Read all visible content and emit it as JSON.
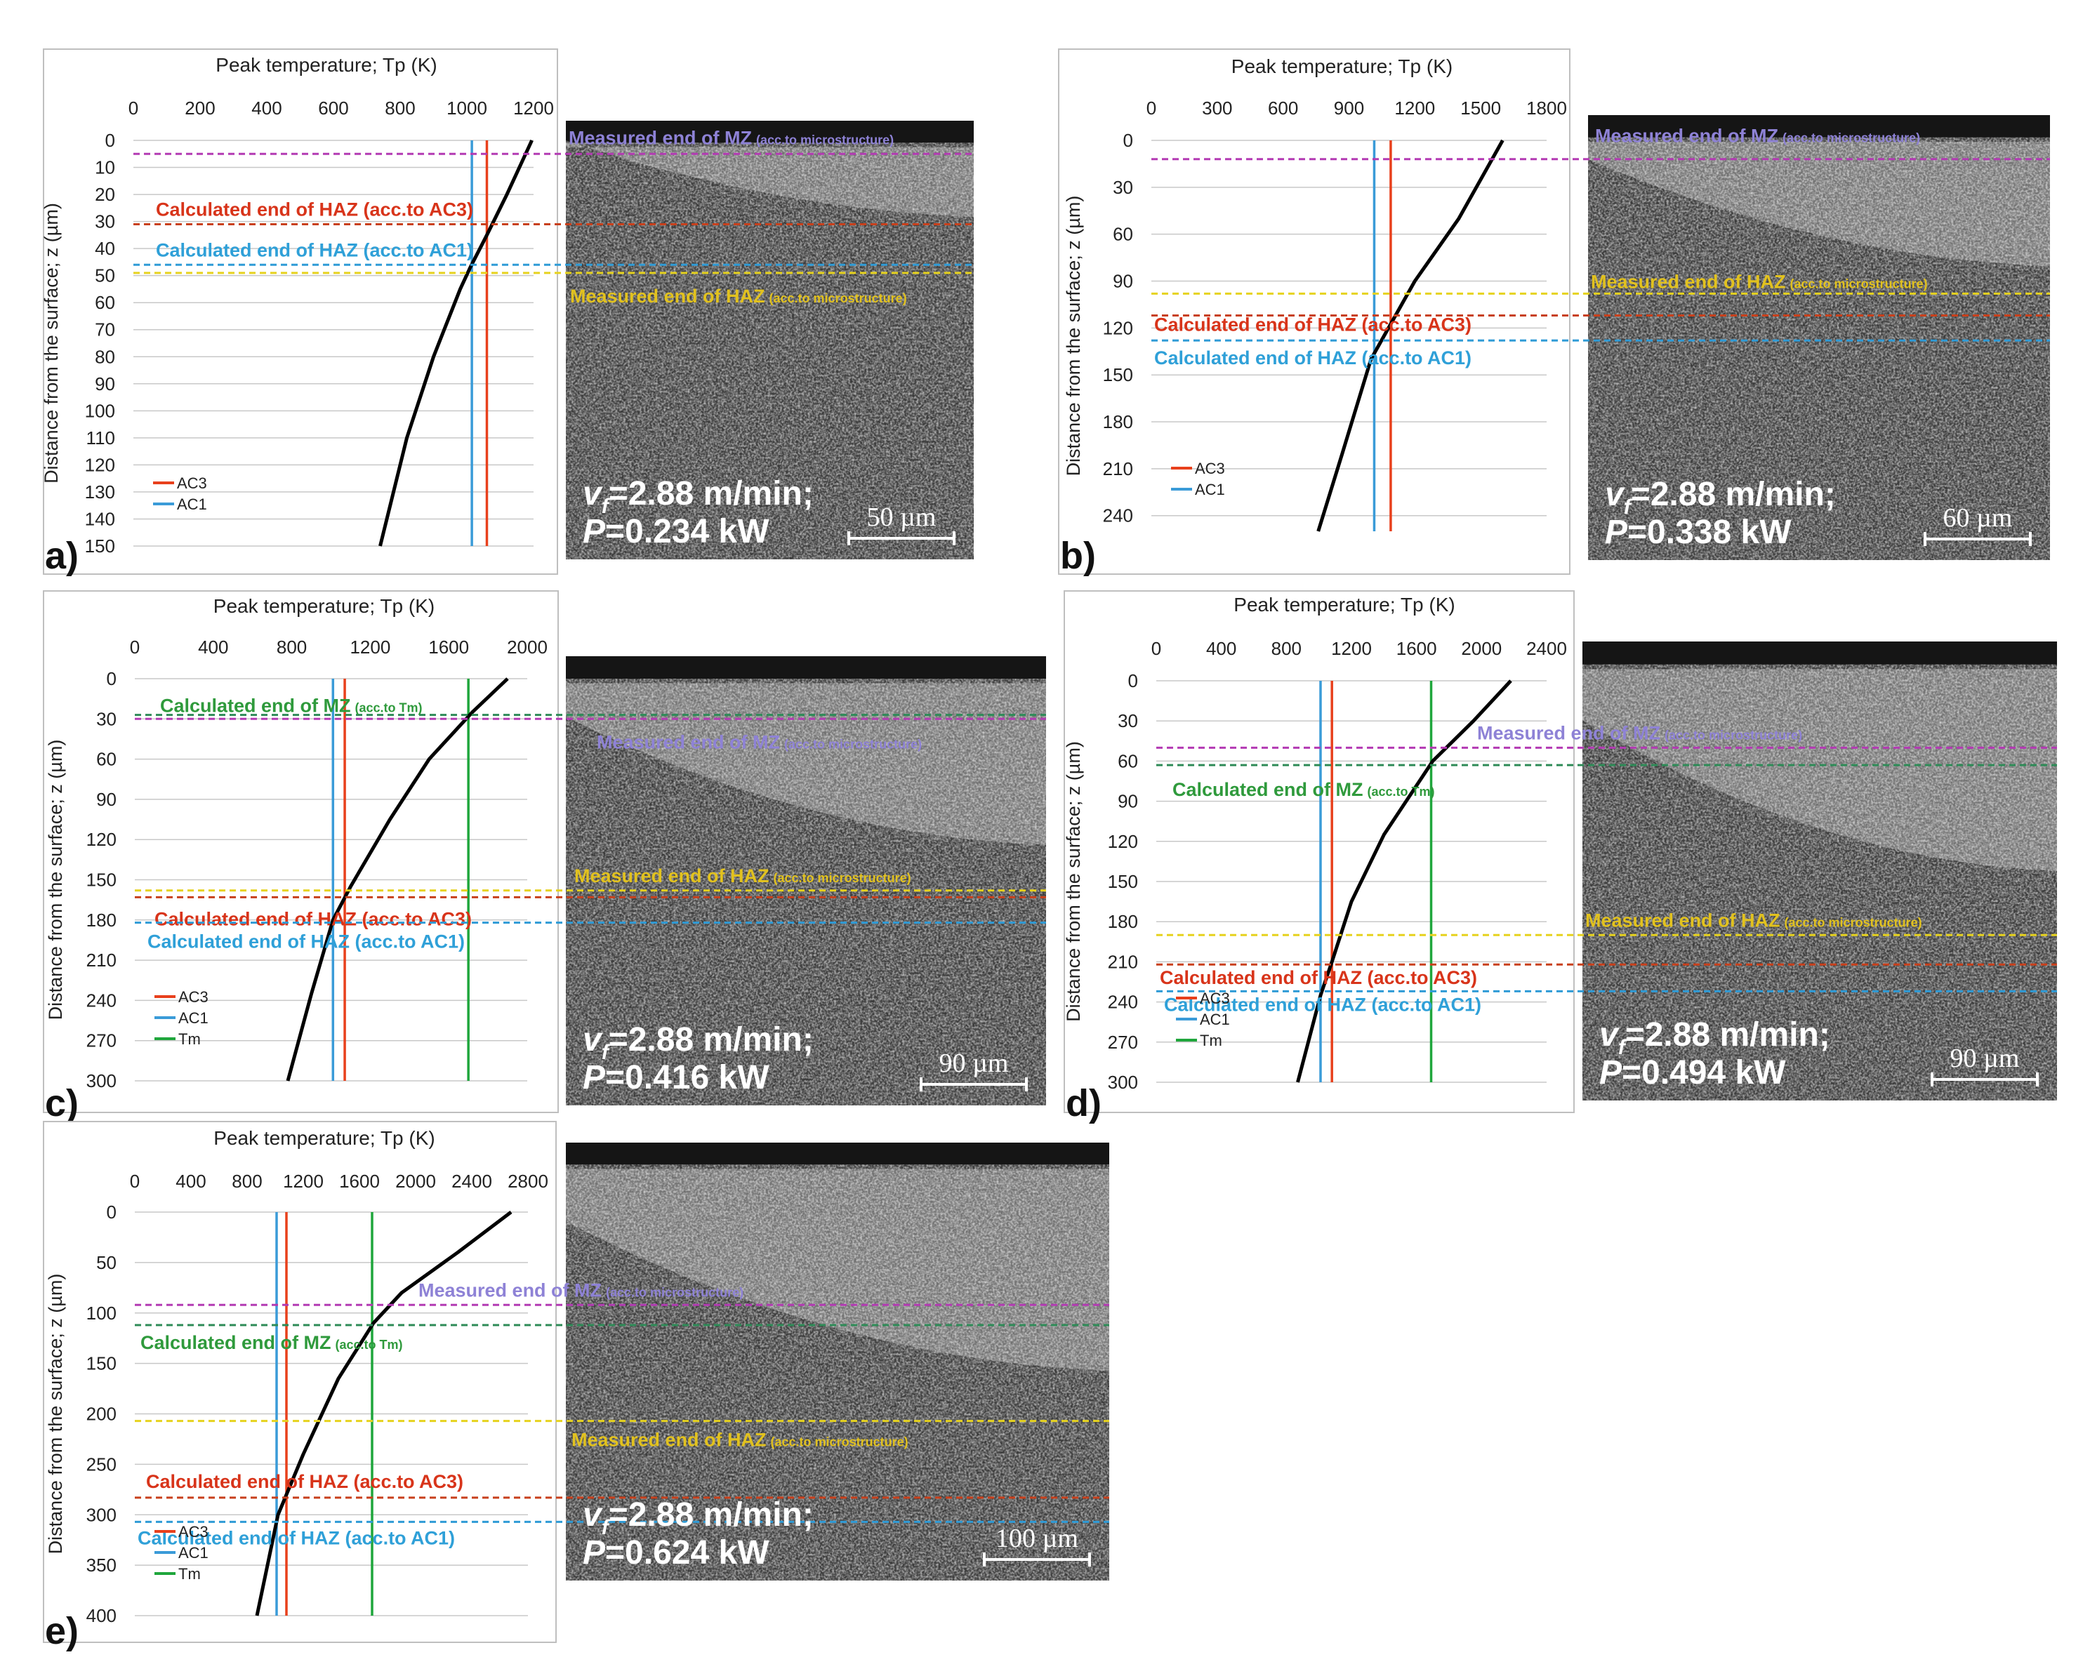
{
  "figure": {
    "background": "#ffffff"
  },
  "styles": {
    "colors": {
      "ac3": "#e8401c",
      "ac1": "#3a9bd8",
      "tm": "#1fa63c",
      "curve": "#000000",
      "grid": "#c8c8c8",
      "frame": "#bfbfbf",
      "line_measured_mz": "#b33ab3",
      "line_calc_mz": "#2e8b57",
      "line_haz_micro": "#e6d21e",
      "line_haz_ac3": "#c8401c",
      "line_haz_ac1": "#2f9bd6",
      "text_measured_mz": "#8e82d6",
      "text_calc_mz": "#2f9a3c",
      "text_haz_micro": "#e2c21e",
      "text_haz_ac3": "#d8341a",
      "text_haz_ac1": "#2fa0d8"
    }
  },
  "chart_data": [
    {
      "panel_label": "a)",
      "type": "line",
      "title": "Peak temperature; Tp (K)",
      "ylabel": "Distance from the surface; z (µm)",
      "xlim": [
        0,
        1200
      ],
      "xticks": [
        0,
        200,
        400,
        600,
        800,
        1000,
        1200
      ],
      "ylim": [
        0,
        150
      ],
      "yticks": [
        0,
        10,
        20,
        30,
        40,
        50,
        60,
        70,
        80,
        90,
        100,
        110,
        120,
        130,
        140,
        150
      ],
      "series": [
        {
          "name": "Tp",
          "x": [
            1195,
            1120,
            1060,
            1010,
            980,
            900,
            820,
            760,
            740
          ],
          "y": [
            0,
            20,
            35,
            47,
            55,
            80,
            110,
            140,
            150
          ]
        },
        {
          "name": "AC3",
          "x": [
            1060,
            1060
          ],
          "y": [
            0,
            150
          ]
        },
        {
          "name": "AC1",
          "x": [
            1015,
            1015
          ],
          "y": [
            0,
            150
          ]
        }
      ],
      "legend": [
        "AC3",
        "AC1"
      ],
      "legend_position": "bottom-left",
      "annotations": [
        {
          "kind": "measured_mz",
          "z": 5,
          "text": "Measured end of MZ",
          "sub": "(acc.to microstructure)"
        },
        {
          "kind": "haz_ac3",
          "z": 31,
          "text": "Calculated end of HAZ (acc.to AC3)",
          "sub": ""
        },
        {
          "kind": "haz_ac1",
          "z": 46,
          "text": "Calculated end of HAZ (acc.to AC1)",
          "sub": ""
        },
        {
          "kind": "haz_micro",
          "z": 49,
          "text": "Measured end of HAZ",
          "sub": "(acc.to microstructure)"
        }
      ],
      "micrograph": {
        "speed": "=2.88 m/min;",
        "power": "=0.234 kW",
        "scale": "50 µm"
      }
    },
    {
      "panel_label": "b)",
      "type": "line",
      "title": "Peak temperature; Tp (K)",
      "ylabel": "Distance from the surface; z (µm)",
      "xlim": [
        0,
        1800
      ],
      "xticks": [
        0,
        300,
        600,
        900,
        1200,
        1500,
        1800
      ],
      "ylim": [
        0,
        250
      ],
      "yticks": [
        0,
        30,
        60,
        90,
        120,
        150,
        180,
        210,
        240
      ],
      "series": [
        {
          "name": "Tp",
          "x": [
            1600,
            1400,
            1200,
            1060,
            1000,
            870,
            760
          ],
          "y": [
            0,
            50,
            90,
            125,
            140,
            200,
            250
          ]
        },
        {
          "name": "AC3",
          "x": [
            1090,
            1090
          ],
          "y": [
            0,
            250
          ]
        },
        {
          "name": "AC1",
          "x": [
            1015,
            1015
          ],
          "y": [
            0,
            250
          ]
        }
      ],
      "legend": [
        "AC3",
        "AC1"
      ],
      "legend_position": "bottom-left",
      "annotations": [
        {
          "kind": "measured_mz",
          "z": 12,
          "text": "Measured end of MZ",
          "sub": "(acc.to microstructure)"
        },
        {
          "kind": "haz_micro",
          "z": 98,
          "text": "Measured end of HAZ",
          "sub": "(acc.to microstructure)"
        },
        {
          "kind": "haz_ac3",
          "z": 112,
          "text": "Calculated end of HAZ (acc.to AC3)",
          "sub": ""
        },
        {
          "kind": "haz_ac1",
          "z": 128,
          "text": "Calculated end of HAZ (acc.to AC1)",
          "sub": ""
        }
      ],
      "micrograph": {
        "speed": "=2.88 m/min;",
        "power": "=0.338 kW",
        "scale": "60 µm"
      }
    },
    {
      "panel_label": "c)",
      "type": "line",
      "title": "Peak temperature; Tp (K)",
      "ylabel": "Distance from the surface; z (µm)",
      "xlim": [
        0,
        2000
      ],
      "xticks": [
        0,
        400,
        800,
        1200,
        1600,
        2000
      ],
      "ylim": [
        0,
        300
      ],
      "yticks": [
        0,
        30,
        60,
        90,
        120,
        150,
        180,
        210,
        240,
        270,
        300
      ],
      "series": [
        {
          "name": "Tp",
          "x": [
            1900,
            1720,
            1500,
            1300,
            1100,
            1010,
            900,
            780
          ],
          "y": [
            0,
            25,
            60,
            105,
            155,
            180,
            235,
            300
          ]
        },
        {
          "name": "AC3",
          "x": [
            1070,
            1070
          ],
          "y": [
            0,
            300
          ]
        },
        {
          "name": "AC1",
          "x": [
            1010,
            1010
          ],
          "y": [
            0,
            300
          ]
        },
        {
          "name": "Tm",
          "x": [
            1700,
            1700
          ],
          "y": [
            0,
            300
          ]
        }
      ],
      "legend": [
        "AC3",
        "AC1",
        "Tm"
      ],
      "legend_position": "bottom-left",
      "annotations": [
        {
          "kind": "calc_mz",
          "z": 27,
          "text": "Calculated end of MZ",
          "sub": "(acc.to Tm)"
        },
        {
          "kind": "measured_mz",
          "z": 30,
          "text": "Measured end of MZ",
          "sub": "(acc.to microstructure)"
        },
        {
          "kind": "haz_micro",
          "z": 158,
          "text": "Measured end of HAZ",
          "sub": "(acc.to microstructure)"
        },
        {
          "kind": "haz_ac3",
          "z": 163,
          "text": "Calculated end of HAZ (acc.to AC3)",
          "sub": ""
        },
        {
          "kind": "haz_ac1",
          "z": 182,
          "text": "Calculated end of HAZ (acc.to AC1)",
          "sub": ""
        }
      ],
      "micrograph": {
        "speed": "=2.88 m/min;",
        "power": "=0.416 kW",
        "scale": "90 µm"
      }
    },
    {
      "panel_label": "d)",
      "type": "line",
      "title": "Peak temperature; Tp (K)",
      "ylabel": "Distance from the surface; z (µm)",
      "xlim": [
        0,
        2400
      ],
      "xticks": [
        0,
        400,
        800,
        1200,
        1600,
        2000,
        2400
      ],
      "ylim": [
        0,
        300
      ],
      "yticks": [
        0,
        30,
        60,
        90,
        120,
        150,
        180,
        210,
        240,
        270,
        300
      ],
      "series": [
        {
          "name": "Tp",
          "x": [
            2180,
            1950,
            1700,
            1400,
            1200,
            1080,
            1010,
            870
          ],
          "y": [
            0,
            30,
            60,
            115,
            165,
            210,
            235,
            300
          ]
        },
        {
          "name": "AC3",
          "x": [
            1080,
            1080
          ],
          "y": [
            0,
            300
          ]
        },
        {
          "name": "AC1",
          "x": [
            1010,
            1010
          ],
          "y": [
            0,
            300
          ]
        },
        {
          "name": "Tm",
          "x": [
            1690,
            1690
          ],
          "y": [
            0,
            300
          ]
        }
      ],
      "legend": [
        "AC3",
        "AC1",
        "Tm"
      ],
      "legend_position": "bottom-left",
      "annotations": [
        {
          "kind": "measured_mz",
          "z": 50,
          "text": "Measured end of MZ",
          "sub": "(acc.to microstructure)"
        },
        {
          "kind": "calc_mz",
          "z": 63,
          "text": "Calculated end of MZ",
          "sub": "(acc.to Tm)"
        },
        {
          "kind": "haz_micro",
          "z": 190,
          "text": "Measured end of HAZ",
          "sub": "(acc.to microstructure)"
        },
        {
          "kind": "haz_ac3",
          "z": 212,
          "text": "Calculated end of HAZ (acc.to AC3)",
          "sub": ""
        },
        {
          "kind": "haz_ac1",
          "z": 232,
          "text": "Calculated end of HAZ (acc.to AC1)",
          "sub": ""
        }
      ],
      "micrograph": {
        "speed": "=2.88 m/min;",
        "power": "=0.494 kW",
        "scale": "90 µm"
      }
    },
    {
      "panel_label": "e)",
      "type": "line",
      "title": "Peak temperature; Tp (K)",
      "ylabel": "Distance from the surface; z (µm)",
      "xlim": [
        0,
        2800
      ],
      "xticks": [
        0,
        400,
        800,
        1200,
        1600,
        2000,
        2400,
        2800
      ],
      "ylim": [
        0,
        400
      ],
      "yticks": [
        0,
        50,
        100,
        150,
        200,
        250,
        300,
        350,
        400
      ],
      "series": [
        {
          "name": "Tp",
          "x": [
            2680,
            2300,
            1900,
            1700,
            1450,
            1200,
            1020,
            870
          ],
          "y": [
            0,
            40,
            80,
            110,
            165,
            240,
            300,
            400
          ]
        },
        {
          "name": "AC3",
          "x": [
            1080,
            1080
          ],
          "y": [
            0,
            400
          ]
        },
        {
          "name": "AC1",
          "x": [
            1010,
            1010
          ],
          "y": [
            0,
            400
          ]
        },
        {
          "name": "Tm",
          "x": [
            1690,
            1690
          ],
          "y": [
            0,
            400
          ]
        }
      ],
      "legend": [
        "AC3",
        "AC1",
        "Tm"
      ],
      "legend_position": "bottom-left",
      "annotations": [
        {
          "kind": "measured_mz",
          "z": 92,
          "text": "Measured end of MZ",
          "sub": "(acc.to microstructure)"
        },
        {
          "kind": "calc_mz",
          "z": 112,
          "text": "Calculated end of MZ",
          "sub": "(acc.to Tm)"
        },
        {
          "kind": "haz_micro",
          "z": 207,
          "text": "Measured end of HAZ",
          "sub": "(acc.to microstructure)"
        },
        {
          "kind": "haz_ac3",
          "z": 283,
          "text": "Calculated end of HAZ (acc.to AC3)",
          "sub": ""
        },
        {
          "kind": "haz_ac1",
          "z": 307,
          "text": "Calculated end of HAZ (acc.to AC1)",
          "sub": ""
        }
      ],
      "micrograph": {
        "speed": "=2.88 m/min;",
        "power": "=0.624 kW",
        "scale": "100 µm"
      }
    }
  ],
  "common": {
    "speed_symbol": "v",
    "speed_subscript": "f",
    "power_symbol": "P"
  }
}
